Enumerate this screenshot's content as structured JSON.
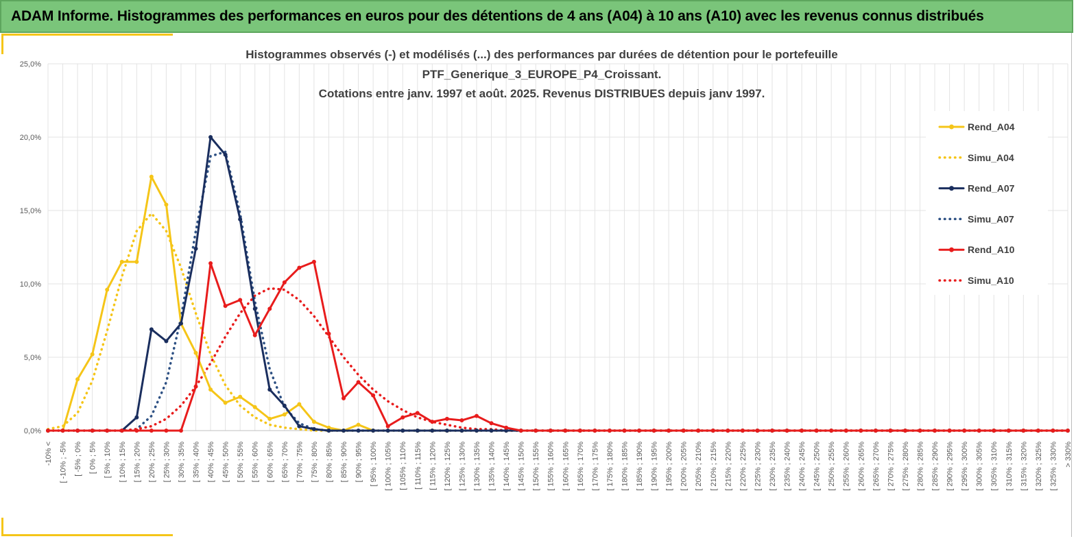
{
  "header": {
    "title": "ADAM Informe. Histogrammes des performances en euros pour des détentions de 4 ans (A04) à 10 ans (A10) avec les revenus connus distribués"
  },
  "chart_data": {
    "type": "line",
    "title_lines": [
      "Histogrammes observés (-) et modélisés (...) des performances par durées de détention pour le portefeuille",
      "PTF_Generique_3_EUROPE_P4_Croissant.",
      "Cotations entre janv. 1997 et août. 2025. Revenus DISTRIBUES depuis janv 1997."
    ],
    "xlabel": "",
    "ylabel": "",
    "ylim": [
      0,
      25
    ],
    "yticks": [
      "0,0%",
      "5,0%",
      "10,0%",
      "15,0%",
      "20,0%",
      "25,0%"
    ],
    "grid": true,
    "legend_position": "right",
    "categories": [
      "-10% <",
      "[ -10% ; -5%",
      "[ -5% ; 0%",
      "[ 0% ; 5%",
      "[ 5% ; 10%",
      "[ 10% ; 15%",
      "[ 15% ; 20%",
      "[ 20% ; 25%",
      "[ 25% ; 30%",
      "[ 30% ; 35%",
      "[ 35% ; 40%",
      "[ 40% ; 45%",
      "[ 45% ; 50%",
      "[ 50% ; 55%",
      "[ 55% ; 60%",
      "[ 60% ; 65%",
      "[ 65% ; 70%",
      "[ 70% ; 75%",
      "[ 75% ; 80%",
      "[ 80% ; 85%",
      "[ 85% ; 90%",
      "[ 90% ; 95%",
      "[ 95% ; 100%",
      "[ 100% ; 105%",
      "[ 105% ; 110%",
      "[ 110% ; 115%",
      "[ 115% ; 120%",
      "[ 120% ; 125%",
      "[ 125% ; 130%",
      "[ 130% ; 135%",
      "[ 135% ; 140%",
      "[ 140% ; 145%",
      "[ 145% ; 150%",
      "[ 150% ; 155%",
      "[ 155% ; 160%",
      "[ 160% ; 165%",
      "[ 165% ; 170%",
      "[ 170% ; 175%",
      "[ 175% ; 180%",
      "[ 180% ; 185%",
      "[ 185% ; 190%",
      "[ 190% ; 195%",
      "[ 195% ; 200%",
      "[ 200% ; 205%",
      "[ 205% ; 210%",
      "[ 210% ; 215%",
      "[ 215% ; 220%",
      "[ 220% ; 225%",
      "[ 225% ; 230%",
      "[ 230% ; 235%",
      "[ 235% ; 240%",
      "[ 240% ; 245%",
      "[ 245% ; 250%",
      "[ 250% ; 255%",
      "[ 255% ; 260%",
      "[ 260% ; 265%",
      "[ 265% ; 270%",
      "[ 270% ; 275%",
      "[ 275% ; 280%",
      "[ 280% ; 285%",
      "[ 285% ; 290%",
      "[ 290% ; 295%",
      "[ 295% ; 300%",
      "[ 300% ; 305%",
      "[ 305% ; 310%",
      "[ 310% ; 315%",
      "[ 315% ; 320%",
      "[ 320% ; 325%",
      "[ 325% ; 330%",
      "> 330%"
    ],
    "series": [
      {
        "name": "Rend_A04",
        "color": "#f5c518",
        "style": "solid",
        "markers": true,
        "values": [
          0,
          0,
          3.5,
          5.2,
          9.6,
          11.5,
          11.5,
          17.3,
          15.4,
          7.3,
          5.3,
          2.8,
          1.9,
          2.3,
          1.6,
          0.8,
          1.1,
          1.8,
          0.6,
          0.2,
          0,
          0.4,
          0,
          0,
          0,
          0,
          0,
          0,
          0,
          0,
          0,
          0,
          0,
          0,
          0,
          0,
          0,
          0,
          0,
          0,
          0,
          0,
          0,
          0,
          0,
          0,
          0,
          0,
          0,
          0,
          0,
          0,
          0,
          0,
          0,
          0,
          0,
          0,
          0,
          0,
          0,
          0,
          0,
          0,
          0,
          0,
          0,
          0,
          0,
          0
        ]
      },
      {
        "name": "Simu_A04",
        "color": "#f5c518",
        "style": "dotted",
        "markers": false,
        "values": [
          0.1,
          0.3,
          1.2,
          3.4,
          6.8,
          10.5,
          13.6,
          14.8,
          13.6,
          11.1,
          8.0,
          5.2,
          3.1,
          1.7,
          0.9,
          0.4,
          0.2,
          0.1,
          0,
          0,
          0,
          0,
          0,
          0,
          0,
          0,
          0,
          0,
          0,
          0,
          0,
          0,
          0,
          0,
          0,
          0,
          0,
          0,
          0,
          0,
          0,
          0,
          0,
          0,
          0,
          0,
          0,
          0,
          0,
          0,
          0,
          0,
          0,
          0,
          0,
          0,
          0,
          0,
          0,
          0,
          0,
          0,
          0,
          0,
          0,
          0,
          0,
          0,
          0,
          0
        ]
      },
      {
        "name": "Rend_A07",
        "color": "#1a2e5e",
        "style": "solid",
        "markers": true,
        "values": [
          0,
          0,
          0,
          0,
          0,
          0,
          0.9,
          6.9,
          6.1,
          7.3,
          12.4,
          20.0,
          18.8,
          14.4,
          8.3,
          2.8,
          1.7,
          0.3,
          0.1,
          0,
          0,
          0,
          0,
          0,
          0,
          0,
          0,
          0,
          0,
          0,
          0,
          0,
          0,
          0,
          0,
          0,
          0,
          0,
          0,
          0,
          0,
          0,
          0,
          0,
          0,
          0,
          0,
          0,
          0,
          0,
          0,
          0,
          0,
          0,
          0,
          0,
          0,
          0,
          0,
          0,
          0,
          0,
          0,
          0,
          0,
          0,
          0,
          0,
          0,
          0
        ]
      },
      {
        "name": "Simu_A07",
        "color": "#2e5184",
        "style": "dotted",
        "markers": false,
        "values": [
          0,
          0,
          0,
          0,
          0,
          0,
          0.1,
          1.0,
          3.3,
          7.7,
          13.6,
          18.7,
          19.0,
          14.8,
          8.8,
          4.2,
          1.6,
          0.5,
          0.1,
          0,
          0,
          0,
          0,
          0,
          0,
          0,
          0,
          0,
          0,
          0,
          0,
          0,
          0,
          0,
          0,
          0,
          0,
          0,
          0,
          0,
          0,
          0,
          0,
          0,
          0,
          0,
          0,
          0,
          0,
          0,
          0,
          0,
          0,
          0,
          0,
          0,
          0,
          0,
          0,
          0,
          0,
          0,
          0,
          0,
          0,
          0,
          0,
          0,
          0,
          0
        ]
      },
      {
        "name": "Rend_A10",
        "color": "#e81c1c",
        "style": "solid",
        "markers": true,
        "values": [
          0,
          0,
          0,
          0,
          0,
          0,
          0,
          0,
          0,
          0,
          3.0,
          11.4,
          8.5,
          8.9,
          6.5,
          8.3,
          10.1,
          11.1,
          11.5,
          6.6,
          2.2,
          3.3,
          2.4,
          0.3,
          0.9,
          1.2,
          0.6,
          0.8,
          0.7,
          1.0,
          0.5,
          0.2,
          0,
          0,
          0,
          0,
          0,
          0,
          0,
          0,
          0,
          0,
          0,
          0,
          0,
          0,
          0,
          0,
          0,
          0,
          0,
          0,
          0,
          0,
          0,
          0,
          0,
          0,
          0,
          0,
          0,
          0,
          0,
          0,
          0,
          0,
          0,
          0,
          0,
          0
        ]
      },
      {
        "name": "Simu_A10",
        "color": "#e81c1c",
        "style": "dotted",
        "markers": false,
        "values": [
          0,
          0,
          0,
          0,
          0,
          0,
          0.1,
          0.3,
          0.8,
          1.7,
          3.0,
          4.6,
          6.4,
          8.0,
          9.2,
          9.7,
          9.6,
          8.9,
          7.8,
          6.4,
          5.0,
          3.8,
          2.8,
          2.0,
          1.4,
          0.9,
          0.6,
          0.4,
          0.2,
          0.1,
          0.1,
          0,
          0,
          0,
          0,
          0,
          0,
          0,
          0,
          0,
          0,
          0,
          0,
          0,
          0,
          0,
          0,
          0,
          0,
          0,
          0,
          0,
          0,
          0,
          0,
          0,
          0,
          0,
          0,
          0,
          0,
          0,
          0,
          0,
          0,
          0,
          0,
          0,
          0,
          0
        ]
      }
    ]
  }
}
